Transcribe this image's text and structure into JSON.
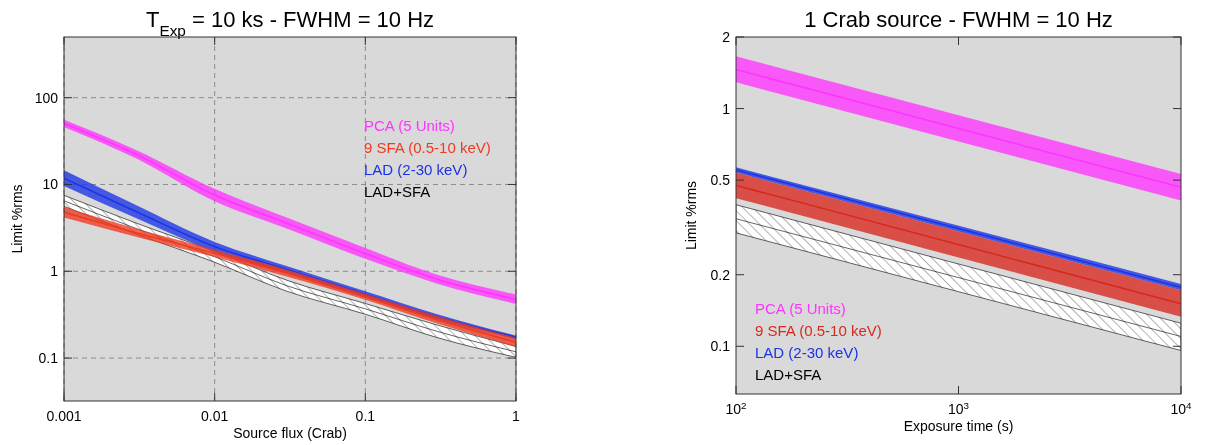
{
  "chart_data": [
    {
      "type": "line",
      "title": "T$_{Exp}$ = 10 ks  - FWHM = 10 Hz",
      "xlabel": "Source flux (Crab)",
      "ylabel": "Limit %rms",
      "log": "xy",
      "grid": true,
      "legend": "top right",
      "marker": "none",
      "line_style": "solid",
      "xlim": [
        0.001,
        1
      ],
      "ylim": [
        0.032,
        500
      ],
      "xticks": [
        0.001,
        0.01,
        0.1,
        1
      ],
      "yticks": [
        0.1,
        1,
        10,
        100
      ],
      "x": [
        0.001,
        0.003,
        0.01,
        0.03,
        0.1,
        0.3,
        1
      ],
      "series": [
        {
          "name": "PCA (5 Units)",
          "color": "#ff33ff",
          "values": [
            50.6,
            22.4,
            7.55,
            3.59,
            1.6,
            0.81,
            0.476
          ],
          "lower": [
            46,
            20,
            6.4,
            3.1,
            1.39,
            0.72,
            0.42
          ],
          "upper": [
            55.6,
            25,
            8.9,
            4.15,
            1.85,
            0.91,
            0.54
          ]
        },
        {
          "name": "9 SFA (0.5-10 keV)",
          "color": "#ee3a20",
          "values": [
            4.78,
            2.78,
            1.61,
            0.956,
            0.508,
            0.276,
            0.152
          ],
          "lower": [
            4.16,
            2.5,
            1.46,
            0.87,
            0.47,
            0.25,
            0.134
          ],
          "upper": [
            5.5,
            3.1,
            1.77,
            1.05,
            0.55,
            0.305,
            0.172
          ]
        },
        {
          "name": "LAD (2-30 keV)",
          "color": "#1a33e6",
          "values": [
            11.8,
            4.88,
            1.92,
            1.05,
            0.543,
            0.299,
            0.173
          ],
          "lower": [
            9.6,
            4.1,
            1.69,
            0.95,
            0.5,
            0.28,
            0.165
          ],
          "upper": [
            14.6,
            5.8,
            2.18,
            1.15,
            0.59,
            0.32,
            0.181
          ]
        },
        {
          "name": "LAD+SFA",
          "color": "#000000",
          "values": [
            6.48,
            3.12,
            1.47,
            0.683,
            0.369,
            0.203,
            0.118
          ],
          "lower": [
            5.6,
            2.7,
            1.27,
            0.59,
            0.32,
            0.172,
            0.102
          ],
          "upper": [
            7.5,
            3.6,
            1.69,
            0.79,
            0.425,
            0.24,
            0.136
          ]
        }
      ]
    },
    {
      "type": "line",
      "title": "1 Crab source - FWHM = 10 Hz",
      "xlabel": "Exposure time (s)",
      "ylabel": "Limit %rms",
      "log": "xy",
      "grid": false,
      "legend": "bottom left",
      "marker": "none",
      "line_style": "solid",
      "xlim": [
        100,
        10000
      ],
      "ylim": [
        0.063,
        2
      ],
      "xticks": [
        {
          "value": 100,
          "label": "10$^{2}$"
        },
        {
          "value": 1000,
          "label": "10$^{3}$"
        },
        {
          "value": 10000,
          "label": "10$^{4}$"
        }
      ],
      "yticks": [
        0.1,
        0.2,
        0.5,
        1,
        2
      ],
      "x": [
        100,
        10000
      ],
      "series": [
        {
          "name": "PCA (5 Units)",
          "color": "#ff33ff",
          "values": [
            1.46,
            0.466
          ],
          "lower": [
            1.29,
            0.41
          ],
          "upper": [
            1.66,
            0.53
          ]
        },
        {
          "name": "9 SFA (0.5-10 keV)",
          "color": "#d8281e",
          "values": [
            0.475,
            0.151
          ],
          "lower": [
            0.42,
            0.133
          ],
          "upper": [
            0.538,
            0.172
          ]
        },
        {
          "name": "LAD (2-30 keV)",
          "color": "#1a33e6",
          "values": [
            0.552,
            0.177
          ],
          "lower": [
            0.538,
            0.172
          ],
          "upper": [
            0.566,
            0.183
          ]
        },
        {
          "name": "LAD+SFA",
          "color": "#000000",
          "values": [
            0.344,
            0.11
          ],
          "lower": [
            0.3,
            0.096
          ],
          "upper": [
            0.394,
            0.125
          ]
        }
      ]
    }
  ]
}
